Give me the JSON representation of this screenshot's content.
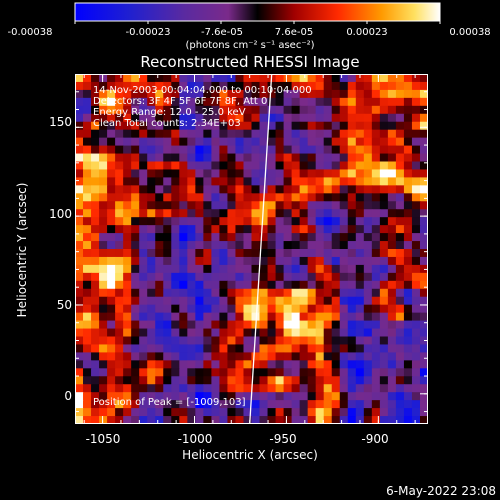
{
  "colorbar": {
    "tick_labels": [
      "-0.00038",
      "-0.00023",
      "-7.6e-05",
      "7.6e-05",
      "0.00023",
      "0.00038"
    ],
    "units_label": "(photons cm⁻² s⁻¹ asec⁻²)",
    "min": -0.00038,
    "max": 0.00038,
    "colormap": "rainbow-to-heat"
  },
  "plot": {
    "title": "Reconstructed RHESSI Image",
    "info_lines": [
      "14-Nov-2003 00:04:04.000 to 00:10:04.000",
      "Detectors: 3F 4F 5F 6F 7F 8F, Att 0",
      "Energy Range: 12.0 - 25.0 keV",
      "Clean     Total counts: 2.34E+03"
    ],
    "peak_label": "Position of Peak = [-1009,103]",
    "xlabel": "Heliocentric X (arcsec)",
    "ylabel": "Heliocentric Y (arcsec)",
    "x_ticks": [
      "-1050",
      "-1000",
      "-950",
      "-900"
    ],
    "y_ticks": [
      "0",
      "50",
      "100",
      "150"
    ]
  },
  "footer": {
    "date": "6-May-2022 23:08"
  },
  "chart_data": {
    "type": "heatmap",
    "title": "Reconstructed RHESSI Image",
    "xlabel": "Heliocentric X (arcsec)",
    "ylabel": "Heliocentric Y (arcsec)",
    "xlim": [
      -1065,
      -873
    ],
    "ylim": [
      -17,
      180
    ],
    "x_tick_values": [
      -1050,
      -1000,
      -950,
      -900
    ],
    "y_tick_values": [
      0,
      50,
      100,
      150
    ],
    "colorbar_range": [
      -0.00038,
      0.00038
    ],
    "peak_position": [
      -1009,
      103
    ],
    "limb_line": [
      [
        -958,
        180
      ],
      [
        -970,
        -17
      ]
    ],
    "colors": {
      "background": "#000000",
      "text": "#ffffff",
      "limb": "#ffffff"
    }
  }
}
